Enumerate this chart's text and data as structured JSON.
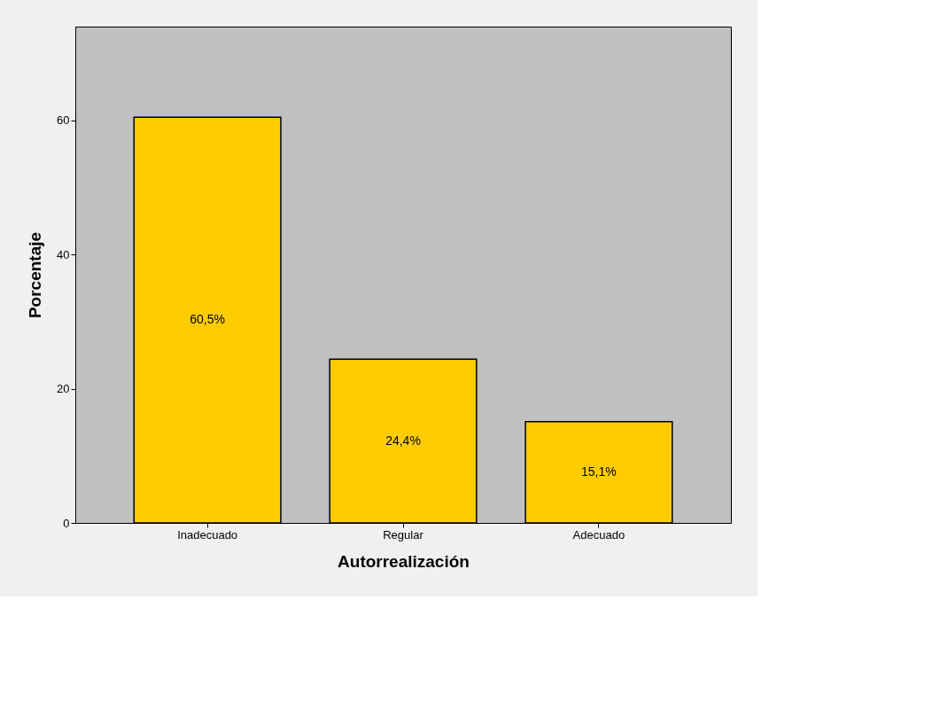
{
  "chart_data": {
    "type": "bar",
    "xlabel": "Autorrealización",
    "ylabel": "Porcentaje",
    "categories": [
      "Inadecuado",
      "Regular",
      "Adecuado"
    ],
    "values": [
      60.5,
      24.4,
      15.1
    ],
    "value_labels": [
      "60,5%",
      "24,4%",
      "15,1%"
    ],
    "color": "#ffcc00",
    "ylim": [
      0,
      74
    ],
    "yticks": [
      0,
      20,
      40,
      60
    ],
    "grid": false
  }
}
